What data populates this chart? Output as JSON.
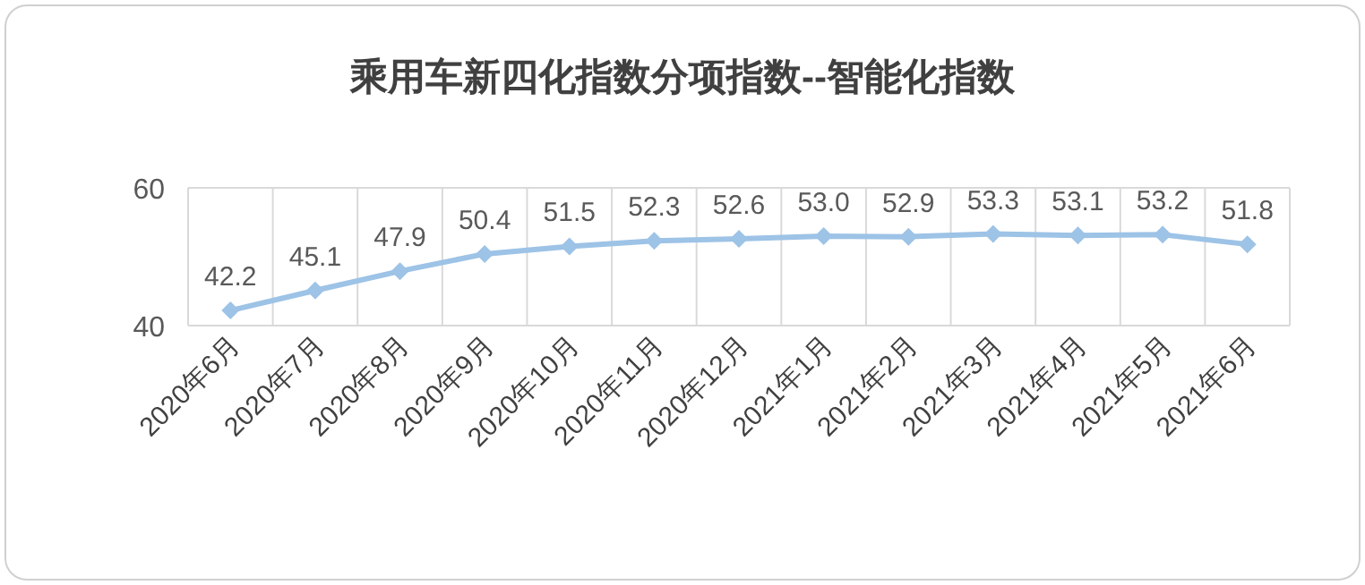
{
  "chart_data": {
    "type": "line",
    "title": "乘用车新四化指数分项指数--智能化指数",
    "categories": [
      "2020年6月",
      "2020年7月",
      "2020年8月",
      "2020年9月",
      "2020年10月",
      "2020年11月",
      "2020年12月",
      "2021年1月",
      "2021年2月",
      "2021年3月",
      "2021年4月",
      "2021年5月",
      "2021年6月"
    ],
    "series": [
      {
        "color": "#9dc3e6",
        "values": [
          42.2,
          45.1,
          47.9,
          50.4,
          51.5,
          52.3,
          52.6,
          53.0,
          52.9,
          53.3,
          53.1,
          53.2,
          51.8
        ]
      }
    ],
    "value_labels": [
      "42.2",
      "45.1",
      "47.9",
      "50.4",
      "51.5",
      "52.3",
      "52.6",
      "53.0",
      "52.9",
      "53.3",
      "53.1",
      "53.2",
      "51.8"
    ],
    "ylim": [
      40,
      60
    ],
    "yticks": [
      40,
      60
    ],
    "grid": true,
    "marker": "diamond",
    "line_style": "solid"
  }
}
